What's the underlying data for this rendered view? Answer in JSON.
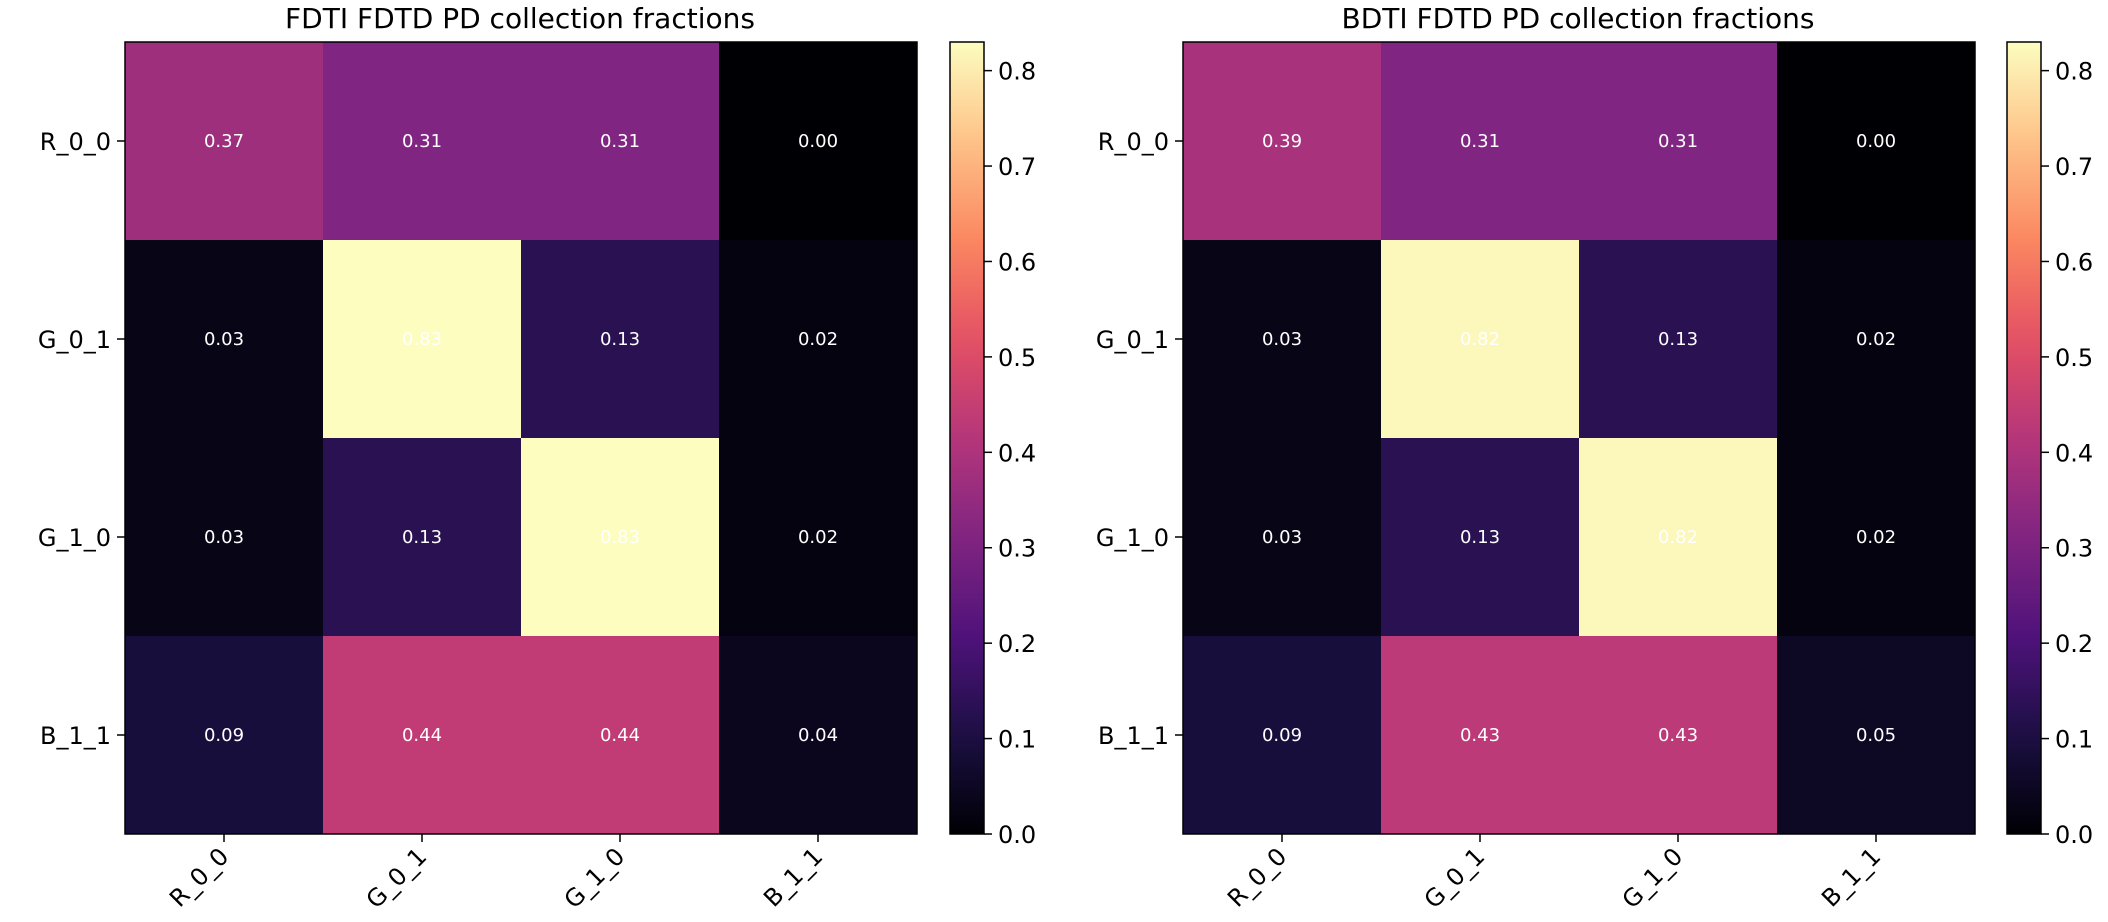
{
  "chart_data": [
    {
      "type": "heatmap",
      "title": "FDTI FDTD PD collection fractions",
      "xlabel": "",
      "ylabel": "",
      "x": [
        "R_0_0",
        "G_0_1",
        "G_1_0",
        "B_1_1"
      ],
      "y": [
        "R_0_0",
        "G_0_1",
        "G_1_0",
        "B_1_1"
      ],
      "values": [
        [
          0.37,
          0.31,
          0.31,
          0.0
        ],
        [
          0.03,
          0.83,
          0.13,
          0.02
        ],
        [
          0.03,
          0.13,
          0.83,
          0.02
        ],
        [
          0.09,
          0.44,
          0.44,
          0.04
        ]
      ],
      "value_labels": [
        [
          "0.37",
          "0.31",
          "0.31",
          "0.00"
        ],
        [
          "0.03",
          "0.83",
          "0.13",
          "0.02"
        ],
        [
          "0.03",
          "0.13",
          "0.83",
          "0.02"
        ],
        [
          "0.09",
          "0.44",
          "0.44",
          "0.04"
        ]
      ],
      "colormap": "magma",
      "colorbar": {
        "range": [
          0,
          0.83
        ],
        "ticks": [
          0.0,
          0.1,
          0.2,
          0.3,
          0.4,
          0.5,
          0.6,
          0.7,
          0.8
        ],
        "tick_labels": [
          "0.0",
          "0.1",
          "0.2",
          "0.3",
          "0.4",
          "0.5",
          "0.6",
          "0.7",
          "0.8"
        ]
      },
      "grid": false,
      "annotation_color": "#ffffff"
    },
    {
      "type": "heatmap",
      "title": "BDTI FDTD PD collection fractions",
      "xlabel": "",
      "ylabel": "",
      "x": [
        "R_0_0",
        "G_0_1",
        "G_1_0",
        "B_1_1"
      ],
      "y": [
        "R_0_0",
        "G_0_1",
        "G_1_0",
        "B_1_1"
      ],
      "values": [
        [
          0.39,
          0.31,
          0.31,
          0.0
        ],
        [
          0.03,
          0.82,
          0.13,
          0.02
        ],
        [
          0.03,
          0.13,
          0.82,
          0.02
        ],
        [
          0.09,
          0.43,
          0.43,
          0.05
        ]
      ],
      "value_labels": [
        [
          "0.39",
          "0.31",
          "0.31",
          "0.00"
        ],
        [
          "0.03",
          "0.82",
          "0.13",
          "0.02"
        ],
        [
          "0.03",
          "0.13",
          "0.82",
          "0.02"
        ],
        [
          "0.09",
          "0.43",
          "0.43",
          "0.05"
        ]
      ],
      "colormap": "magma",
      "colorbar": {
        "range": [
          0,
          0.83
        ],
        "ticks": [
          0.0,
          0.1,
          0.2,
          0.3,
          0.4,
          0.5,
          0.6,
          0.7,
          0.8
        ],
        "tick_labels": [
          "0.0",
          "0.1",
          "0.2",
          "0.3",
          "0.4",
          "0.5",
          "0.6",
          "0.7",
          "0.8"
        ]
      },
      "grid": false,
      "annotation_color": "#ffffff"
    }
  ]
}
